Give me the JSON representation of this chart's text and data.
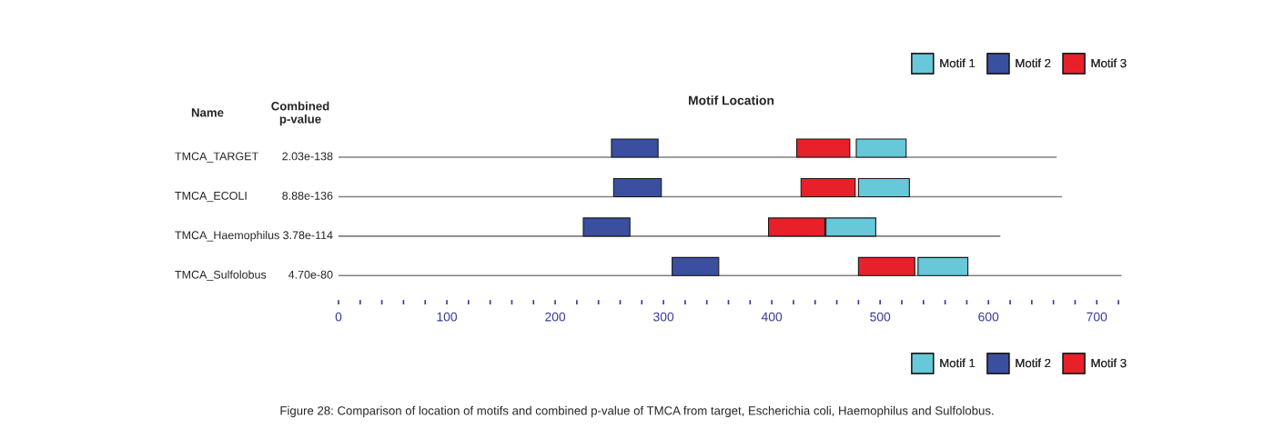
{
  "chart_data": {
    "type": "bar",
    "orientation": "horizontal",
    "title": "Motif Location",
    "categories": [
      "TMCA_TARGET",
      "TMCA_ECOLI",
      "TMCA_Haemophilus",
      "TMCA_Sulfolobus"
    ],
    "series": [
      {
        "type": "bar",
        "color": "#808080",
        "base": [
          0,
          0,
          0,
          0
        ],
        "values": [
          663,
          668,
          611,
          723
        ]
      },
      {
        "name": "Motif 1",
        "color": "#66c8d8",
        "base": [
          478,
          480,
          450,
          535
        ],
        "values": [
          46,
          47,
          46,
          46
        ]
      },
      {
        "name": "Motif 2",
        "color": "#3a4fa0",
        "base": [
          252,
          254,
          226,
          308
        ],
        "values": [
          43,
          44,
          43,
          43
        ]
      },
      {
        "name": "Motif 3",
        "color": "#e8202a",
        "base": [
          423,
          427,
          397,
          480
        ],
        "values": [
          49,
          50,
          52,
          52
        ]
      }
    ],
    "xlim": [
      0,
      725
    ],
    "xticks": [
      0,
      {
        "value": 20,
        "label": null
      },
      {
        "value": 40,
        "label": null
      },
      {
        "value": 60,
        "label": null
      },
      {
        "value": 80,
        "label": null
      },
      100,
      {
        "value": 120,
        "label": null
      },
      {
        "value": 140,
        "label": null
      },
      {
        "value": 160,
        "label": null
      },
      {
        "value": 180,
        "label": null
      },
      200,
      {
        "value": 220,
        "label": null
      },
      {
        "value": 240,
        "label": null
      },
      {
        "value": 260,
        "label": null
      },
      {
        "value": 280,
        "label": null
      },
      300,
      {
        "value": 320,
        "label": null
      },
      {
        "value": 340,
        "label": null
      },
      {
        "value": 360,
        "label": null
      },
      {
        "value": 380,
        "label": null
      },
      400,
      {
        "value": 420,
        "label": null
      },
      {
        "value": 440,
        "label": null
      },
      {
        "value": 460,
        "label": null
      },
      {
        "value": 480,
        "label": null
      },
      500,
      {
        "value": 520,
        "label": null
      },
      {
        "value": 540,
        "label": null
      },
      {
        "value": 560,
        "label": null
      },
      {
        "value": 580,
        "label": null
      },
      600,
      {
        "value": 620,
        "label": null
      },
      {
        "value": 640,
        "label": null
      },
      {
        "value": 660,
        "label": null
      },
      {
        "value": 680,
        "label": null
      },
      700,
      {
        "value": 720,
        "label": null
      }
    ],
    "legend": [
      "top right",
      "bottom right"
    ],
    "grid": false,
    "annotations": [
      "Name",
      "Combined p-value",
      "2.03e-138",
      "8.88e-136",
      "3.78e-114",
      "4.70e-80",
      "Figure 28: Comparison of location of motifs and combined p-value of TMCA from target, Escherichia coli, Haemophilus and Sulfolobus."
    ]
  }
}
